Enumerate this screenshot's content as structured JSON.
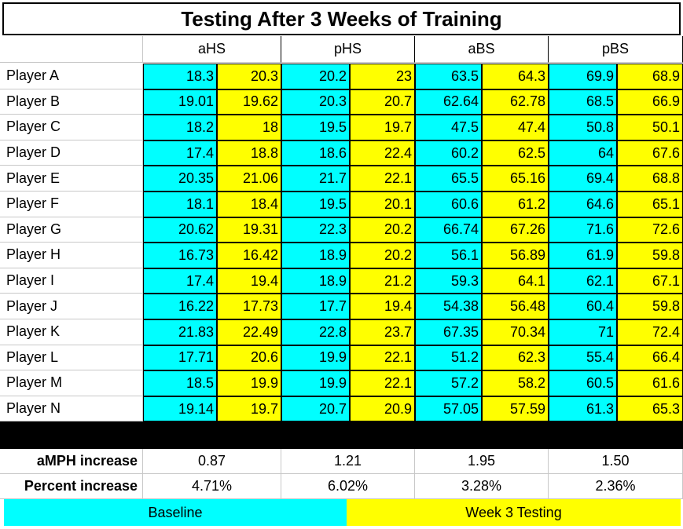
{
  "title": "Testing After 3 Weeks of Training",
  "headers": [
    "aHS",
    "pHS",
    "aBS",
    "pBS"
  ],
  "rows": [
    [
      "Player A",
      "18.3",
      "20.3",
      "20.2",
      "23",
      "63.5",
      "64.3",
      "69.9",
      "68.9"
    ],
    [
      "Player B",
      "19.01",
      "19.62",
      "20.3",
      "20.7",
      "62.64",
      "62.78",
      "68.5",
      "66.9"
    ],
    [
      "Player C",
      "18.2",
      "18",
      "19.5",
      "19.7",
      "47.5",
      "47.4",
      "50.8",
      "50.1"
    ],
    [
      "Player D",
      "17.4",
      "18.8",
      "18.6",
      "22.4",
      "60.2",
      "62.5",
      "64",
      "67.6"
    ],
    [
      "Player E",
      "20.35",
      "21.06",
      "21.7",
      "22.1",
      "65.5",
      "65.16",
      "69.4",
      "68.8"
    ],
    [
      "Player F",
      "18.1",
      "18.4",
      "19.5",
      "20.1",
      "60.6",
      "61.2",
      "64.6",
      "65.1"
    ],
    [
      "Player G",
      "20.62",
      "19.31",
      "22.3",
      "20.2",
      "66.74",
      "67.26",
      "71.6",
      "72.6"
    ],
    [
      "Player H",
      "16.73",
      "16.42",
      "18.9",
      "20.2",
      "56.1",
      "56.89",
      "61.9",
      "59.8"
    ],
    [
      "Player I",
      "17.4",
      "19.4",
      "18.9",
      "21.2",
      "59.3",
      "64.1",
      "62.1",
      "67.1"
    ],
    [
      "Player J",
      "16.22",
      "17.73",
      "17.7",
      "19.4",
      "54.38",
      "56.48",
      "60.4",
      "59.8"
    ],
    [
      "Player K",
      "21.83",
      "22.49",
      "22.8",
      "23.7",
      "67.35",
      "70.34",
      "71",
      "72.4"
    ],
    [
      "Player L",
      "17.71",
      "20.6",
      "19.9",
      "22.1",
      "51.2",
      "62.3",
      "55.4",
      "66.4"
    ],
    [
      "Player M",
      "18.5",
      "19.9",
      "19.9",
      "22.1",
      "57.2",
      "58.2",
      "60.5",
      "61.6"
    ],
    [
      "Player N",
      "19.14",
      "19.7",
      "20.7",
      "20.9",
      "57.05",
      "57.59",
      "61.3",
      "65.3"
    ]
  ],
  "summary": [
    [
      "aMPH increase",
      "0.87",
      "1.21",
      "1.95",
      "1.50"
    ],
    [
      "Percent increase",
      "4.71%",
      "6.02%",
      "3.28%",
      "2.36%"
    ]
  ],
  "legend": {
    "baseline": "Baseline",
    "week3": "Week 3 Testing"
  }
}
